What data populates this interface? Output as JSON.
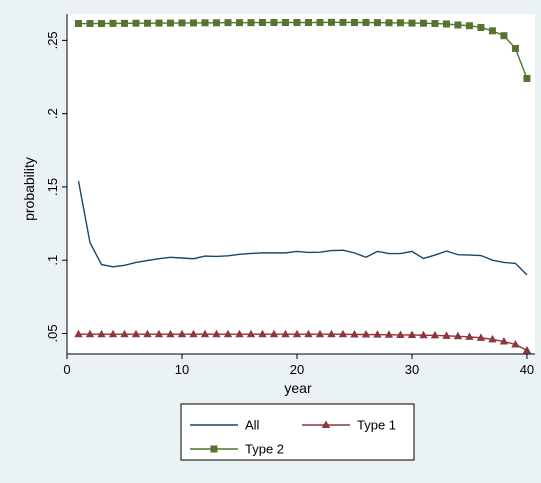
{
  "chart_data": {
    "type": "line",
    "xlabel": "year",
    "ylabel": "probability",
    "xlim": [
      0,
      40.7
    ],
    "ylim": [
      0.036,
      0.268
    ],
    "xticks": [
      0,
      10,
      20,
      30,
      40
    ],
    "xtick_labels": [
      "0",
      "10",
      "20",
      "30",
      "40"
    ],
    "yticks": [
      0.05,
      0.1,
      0.15,
      0.2,
      0.25
    ],
    "ytick_labels": [
      ".05",
      ".1",
      ".15",
      ".2",
      ".25"
    ],
    "grid": false,
    "legend_position": "bottom",
    "x": [
      1,
      2,
      3,
      4,
      5,
      6,
      7,
      8,
      9,
      10,
      11,
      12,
      13,
      14,
      15,
      16,
      17,
      18,
      19,
      20,
      21,
      22,
      23,
      24,
      25,
      26,
      27,
      28,
      29,
      30,
      31,
      32,
      33,
      34,
      35,
      36,
      37,
      38,
      39,
      40
    ],
    "series": [
      {
        "name": "All",
        "color": "#1a476f",
        "marker": "none",
        "values": [
          0.154,
          0.112,
          0.097,
          0.0955,
          0.0965,
          0.0985,
          0.0998,
          0.101,
          0.102,
          0.1015,
          0.101,
          0.1028,
          0.1026,
          0.103,
          0.104,
          0.1046,
          0.105,
          0.105,
          0.105,
          0.106,
          0.1053,
          0.1055,
          0.1066,
          0.1068,
          0.105,
          0.102,
          0.106,
          0.1045,
          0.1045,
          0.106,
          0.1012,
          0.1035,
          0.1062,
          0.1038,
          0.1035,
          0.1032,
          0.1,
          0.0985,
          0.0978,
          0.09
        ]
      },
      {
        "name": "Type 1",
        "color": "#90353b",
        "marker": "triangle",
        "values": [
          0.0495,
          0.0495,
          0.0495,
          0.0495,
          0.0495,
          0.0495,
          0.0495,
          0.0495,
          0.0495,
          0.0495,
          0.0495,
          0.0495,
          0.0495,
          0.0495,
          0.0495,
          0.0495,
          0.0495,
          0.0495,
          0.0495,
          0.0495,
          0.0495,
          0.0495,
          0.0495,
          0.0495,
          0.0493,
          0.0493,
          0.0492,
          0.0491,
          0.049,
          0.049,
          0.0488,
          0.0487,
          0.0484,
          0.0481,
          0.0477,
          0.047,
          0.046,
          0.0445,
          0.0425,
          0.0385
        ]
      },
      {
        "name": "Type 2",
        "color": "#55752f",
        "marker": "square",
        "values": [
          0.2615,
          0.2615,
          0.2615,
          0.2616,
          0.2616,
          0.2617,
          0.2617,
          0.2618,
          0.2618,
          0.2619,
          0.2619,
          0.262,
          0.262,
          0.2621,
          0.2621,
          0.2621,
          0.2622,
          0.2622,
          0.2622,
          0.2622,
          0.2622,
          0.2622,
          0.2623,
          0.2623,
          0.2622,
          0.2622,
          0.2621,
          0.262,
          0.262,
          0.2618,
          0.2617,
          0.2615,
          0.2612,
          0.2605,
          0.26,
          0.2588,
          0.2565,
          0.2532,
          0.2445,
          0.224
        ]
      }
    ]
  }
}
